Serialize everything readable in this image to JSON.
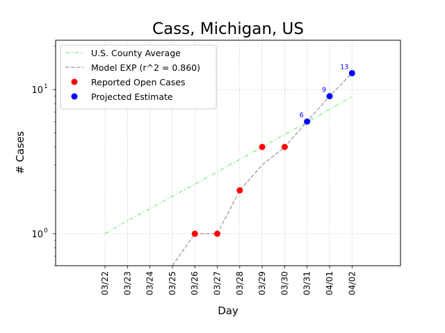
{
  "chart_data": {
    "type": "line",
    "title": "Cass, Michigan, US",
    "xlabel": "Day",
    "ylabel": "# Cases",
    "y_scale": "log",
    "ylim": [
      0.6,
      22
    ],
    "y_ticks": [
      {
        "value": 1,
        "base": "10",
        "exp": "0"
      },
      {
        "value": 10,
        "base": "10",
        "exp": "1"
      }
    ],
    "categories": [
      "03/22",
      "03/23",
      "03/24",
      "03/25",
      "03/26",
      "03/27",
      "03/28",
      "03/29",
      "03/30",
      "03/31",
      "04/01",
      "04/02"
    ],
    "grid": true,
    "legend_position": "top-left",
    "series": [
      {
        "name": "U.S. County Average",
        "kind": "line",
        "style": "dashdot",
        "color": "#90ee90",
        "values": [
          1.0,
          1.23,
          1.49,
          1.82,
          2.21,
          2.69,
          3.28,
          4.0,
          4.88,
          5.95,
          7.29,
          8.94
        ]
      },
      {
        "name": "Model EXP (r^2 = 0.860)",
        "kind": "line",
        "style": "dashed",
        "color": "#a8a8a8",
        "values": [
          null,
          null,
          null,
          0.1,
          1,
          1,
          2,
          3,
          4,
          6,
          9,
          13
        ]
      },
      {
        "name": "Reported Open Cases",
        "kind": "markers",
        "color": "#ff0000",
        "values": [
          null,
          null,
          null,
          null,
          1,
          1,
          2,
          4,
          4,
          null,
          null,
          null
        ]
      },
      {
        "name": "Projected Estimate",
        "kind": "markers",
        "color": "#0000ff",
        "values": [
          null,
          null,
          null,
          null,
          null,
          null,
          null,
          null,
          null,
          6,
          9,
          13
        ]
      }
    ],
    "annotations": [
      {
        "category": "03/31",
        "value": 6,
        "text": "6"
      },
      {
        "category": "04/01",
        "value": 9,
        "text": "9"
      },
      {
        "category": "04/02",
        "value": 13,
        "text": "13"
      }
    ]
  }
}
